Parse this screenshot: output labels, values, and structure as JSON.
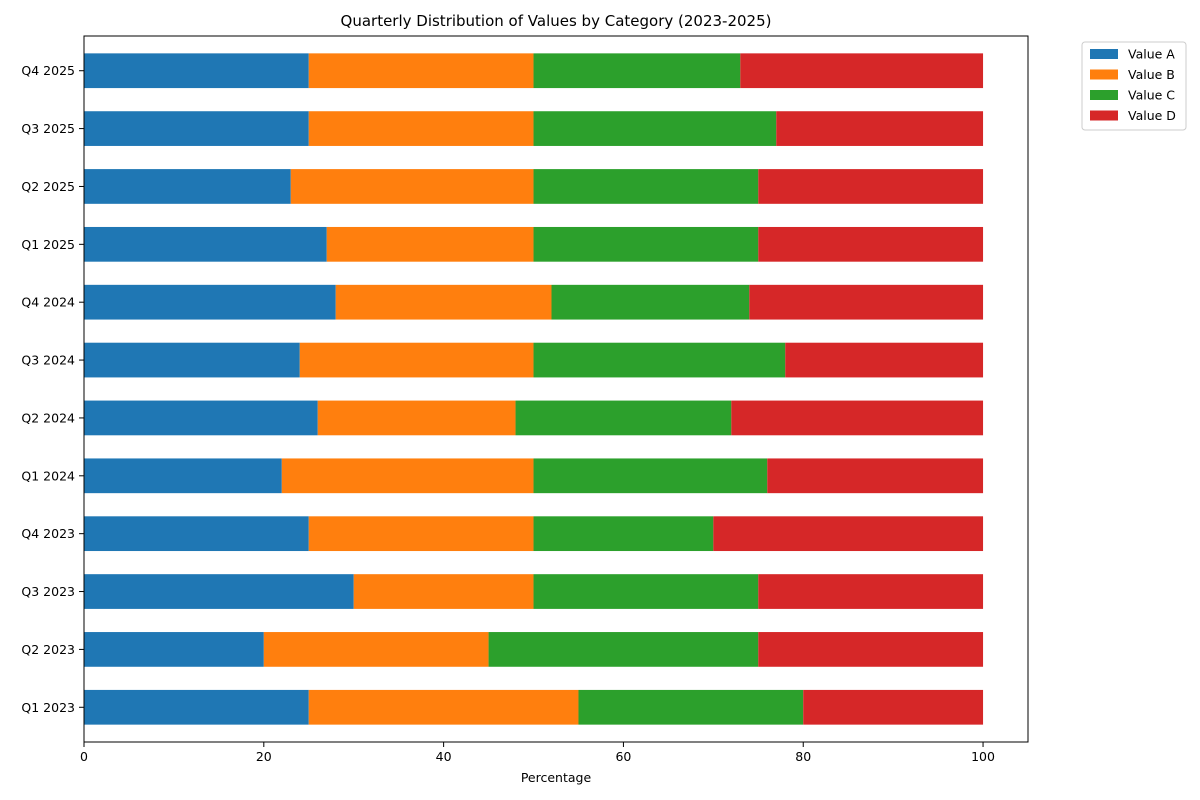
{
  "chart_data": {
    "type": "bar",
    "orientation": "horizontal",
    "stacked": true,
    "title": "Quarterly Distribution of Values by Category (2023-2025)",
    "xlabel": "Percentage",
    "ylabel": "",
    "xlim": [
      0,
      105
    ],
    "xticks": [
      0,
      20,
      40,
      60,
      80,
      100
    ],
    "grid": false,
    "legend_position": "top-right, outside plot",
    "categories": [
      "Q1 2023",
      "Q2 2023",
      "Q3 2023",
      "Q4 2023",
      "Q1 2024",
      "Q2 2024",
      "Q3 2024",
      "Q4 2024",
      "Q1 2025",
      "Q2 2025",
      "Q3 2025",
      "Q4 2025"
    ],
    "series": [
      {
        "name": "Value A",
        "color": "#1f77b4",
        "values": [
          25,
          20,
          30,
          25,
          22,
          26,
          24,
          28,
          27,
          23,
          25,
          25
        ]
      },
      {
        "name": "Value B",
        "color": "#ff7f0e",
        "values": [
          30,
          25,
          20,
          25,
          28,
          22,
          26,
          24,
          23,
          27,
          25,
          25
        ]
      },
      {
        "name": "Value C",
        "color": "#2ca02c",
        "values": [
          25,
          30,
          25,
          20,
          26,
          24,
          28,
          22,
          25,
          25,
          27,
          23
        ]
      },
      {
        "name": "Value D",
        "color": "#d62728",
        "values": [
          20,
          25,
          25,
          30,
          24,
          28,
          22,
          26,
          25,
          25,
          23,
          27
        ]
      }
    ]
  }
}
